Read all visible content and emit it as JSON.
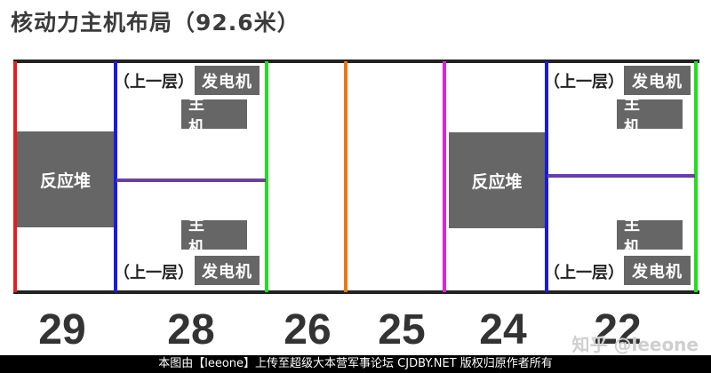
{
  "title": "核动力主机布局（92.6米）",
  "labels": {
    "reactor": "反应堆",
    "generator": "发电机",
    "main_engine": "主 机",
    "upper_deck": "（上一层）"
  },
  "compartments": [
    "29",
    "28",
    "26",
    "25",
    "24",
    "22"
  ],
  "watermark": "知乎 @leeone",
  "footer": "本图由【leeone】上传至超级大本营军事论坛 CJDBY.NET 版权归原作者所有",
  "colors": {
    "red": "#e02020",
    "blue": "#1a1ae0",
    "green": "#20dd20",
    "orange": "#ee7711",
    "magenta": "#dd22dd",
    "purple": "#6a3fa0",
    "box": "#666666"
  }
}
